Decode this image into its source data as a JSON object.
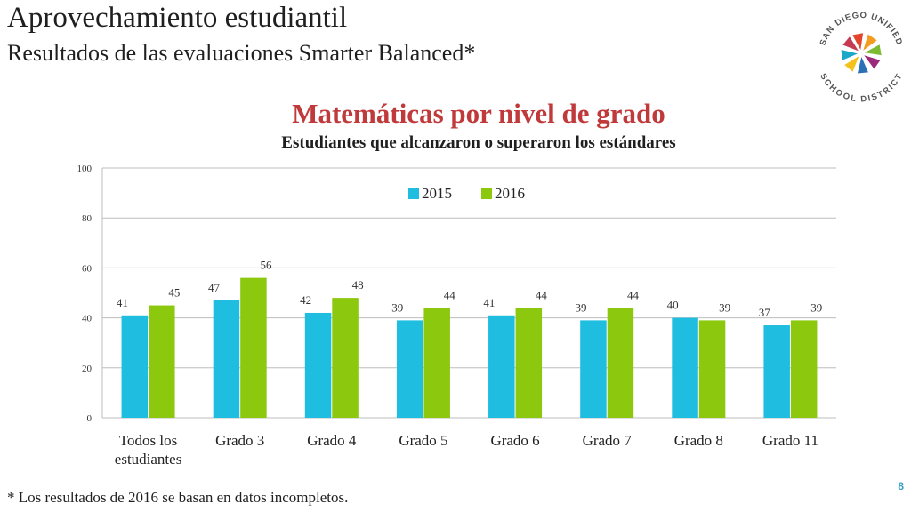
{
  "header": {
    "title": "Aprovechamiento estudiantil",
    "subtitle": "Resultados de las evaluaciones Smarter Balanced*"
  },
  "logo": {
    "icon": "san-diego-unified-star-logo",
    "text_top": "SAN DIEGO UNIFIED",
    "text_bottom": "SCHOOL DISTRICT"
  },
  "chart_data": {
    "type": "bar",
    "title": "Matemáticas por nivel de grado",
    "subtitle": "Estudiantes que alcanzaron o superaron los estándares",
    "categories": [
      [
        "Todos los",
        "estudiantes"
      ],
      [
        "Grado 3"
      ],
      [
        "Grado 4"
      ],
      [
        "Grado 5"
      ],
      [
        "Grado 6"
      ],
      [
        "Grado 7"
      ],
      [
        "Grado 8"
      ],
      [
        "Grado 11"
      ]
    ],
    "series": [
      {
        "name": "2015",
        "color": "#1fbde0",
        "values": [
          41,
          47,
          42,
          39,
          41,
          39,
          40,
          37
        ]
      },
      {
        "name": "2016",
        "color": "#8cc80e",
        "values": [
          45,
          56,
          48,
          44,
          44,
          44,
          39,
          39
        ]
      }
    ],
    "ylim": [
      0,
      100
    ],
    "yticks": [
      0,
      20,
      40,
      60,
      80,
      100
    ],
    "xlabel": "",
    "ylabel": "",
    "grid": true,
    "legend": "top-center",
    "data_labels": true
  },
  "footer": {
    "footnote": "* Los resultados de 2016 se basan en datos incompletos.",
    "page_number": "8"
  }
}
